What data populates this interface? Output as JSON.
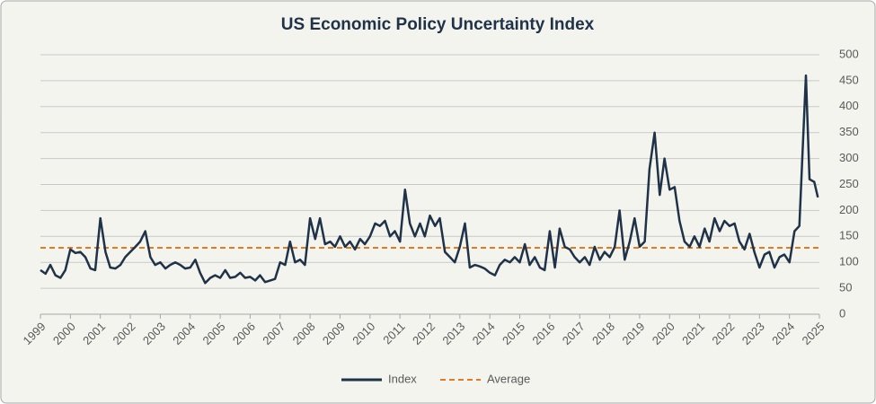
{
  "chart_data": {
    "type": "line",
    "title": "US Economic Policy Uncertainty Index",
    "xlim": [
      1999,
      2025
    ],
    "xticks": [
      1999,
      2000,
      2001,
      2002,
      2003,
      2004,
      2005,
      2006,
      2007,
      2008,
      2009,
      2010,
      2011,
      2012,
      2013,
      2014,
      2015,
      2016,
      2017,
      2018,
      2019,
      2020,
      2021,
      2022,
      2023,
      2024,
      2025
    ],
    "ylim": [
      0,
      500
    ],
    "yticks": [
      0,
      50,
      100,
      150,
      200,
      250,
      300,
      350,
      400,
      450,
      500
    ],
    "grid": true,
    "x": [
      1999,
      1999.17,
      1999.33,
      1999.5,
      1999.67,
      1999.83,
      2000,
      2000.17,
      2000.33,
      2000.5,
      2000.67,
      2000.83,
      2001,
      2001.17,
      2001.33,
      2001.5,
      2001.67,
      2001.83,
      2002,
      2002.17,
      2002.33,
      2002.5,
      2002.67,
      2002.83,
      2003,
      2003.17,
      2003.33,
      2003.5,
      2003.67,
      2003.83,
      2004,
      2004.17,
      2004.33,
      2004.5,
      2004.67,
      2004.83,
      2005,
      2005.17,
      2005.33,
      2005.5,
      2005.67,
      2005.83,
      2006,
      2006.17,
      2006.33,
      2006.5,
      2006.67,
      2006.83,
      2007,
      2007.17,
      2007.33,
      2007.5,
      2007.67,
      2007.83,
      2008,
      2008.17,
      2008.33,
      2008.5,
      2008.67,
      2008.83,
      2009,
      2009.17,
      2009.33,
      2009.5,
      2009.67,
      2009.83,
      2010,
      2010.17,
      2010.33,
      2010.5,
      2010.67,
      2010.83,
      2011,
      2011.17,
      2011.33,
      2011.5,
      2011.67,
      2011.83,
      2012,
      2012.17,
      2012.33,
      2012.5,
      2012.67,
      2012.83,
      2013,
      2013.17,
      2013.33,
      2013.5,
      2013.67,
      2013.83,
      2014,
      2014.17,
      2014.33,
      2014.5,
      2014.67,
      2014.83,
      2015,
      2015.17,
      2015.33,
      2015.5,
      2015.67,
      2015.83,
      2016,
      2016.17,
      2016.33,
      2016.5,
      2016.67,
      2016.83,
      2017,
      2017.17,
      2017.33,
      2017.5,
      2017.67,
      2017.83,
      2018,
      2018.17,
      2018.33,
      2018.5,
      2018.67,
      2018.83,
      2019,
      2019.17,
      2019.33,
      2019.5,
      2019.67,
      2019.83,
      2020,
      2020.17,
      2020.33,
      2020.5,
      2020.67,
      2020.83,
      2021,
      2021.17,
      2021.33,
      2021.5,
      2021.67,
      2021.83,
      2022,
      2022.17,
      2022.33,
      2022.5,
      2022.67,
      2022.83,
      2023,
      2023.17,
      2023.33,
      2023.5,
      2023.67,
      2023.83,
      2024,
      2024.17,
      2024.33,
      2024.42,
      2024.55,
      2024.67,
      2024.83,
      2024.95
    ],
    "series": [
      {
        "name": "Index",
        "color": "#1f3247",
        "values": [
          85,
          78,
          95,
          75,
          70,
          85,
          125,
          118,
          120,
          110,
          88,
          85,
          185,
          120,
          90,
          88,
          95,
          110,
          120,
          130,
          140,
          160,
          110,
          95,
          100,
          88,
          95,
          100,
          95,
          88,
          90,
          105,
          80,
          60,
          70,
          75,
          70,
          85,
          70,
          72,
          80,
          70,
          72,
          65,
          75,
          62,
          65,
          68,
          100,
          95,
          140,
          100,
          105,
          95,
          185,
          145,
          185,
          135,
          140,
          130,
          150,
          130,
          140,
          125,
          145,
          135,
          150,
          175,
          170,
          180,
          150,
          160,
          140,
          240,
          175,
          150,
          175,
          150,
          190,
          170,
          185,
          120,
          110,
          100,
          130,
          175,
          90,
          95,
          92,
          88,
          80,
          75,
          95,
          105,
          100,
          110,
          100,
          135,
          95,
          110,
          90,
          85,
          160,
          90,
          165,
          130,
          125,
          110,
          100,
          110,
          95,
          130,
          105,
          120,
          110,
          130,
          200,
          105,
          140,
          185,
          130,
          140,
          280,
          350,
          230,
          300,
          240,
          245,
          180,
          140,
          130,
          150,
          130,
          165,
          140,
          185,
          160,
          180,
          170,
          175,
          140,
          125,
          155,
          120,
          90,
          115,
          120,
          90,
          110,
          115,
          100,
          160,
          170,
          290,
          460,
          260,
          255,
          225
        ]
      }
    ],
    "average": {
      "name": "Average",
      "value": 128,
      "color": "#e07b24"
    }
  }
}
